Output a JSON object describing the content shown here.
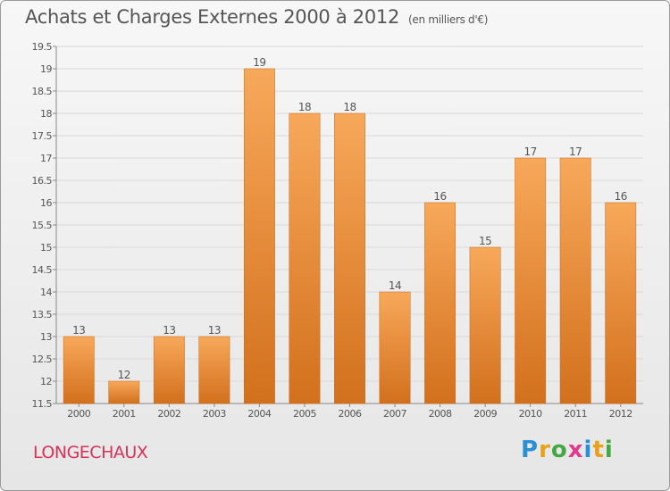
{
  "title": "Achats et Charges Externes 2000 à 2012",
  "subtitle": "(en milliers d'€)",
  "city": "LONGECHAUX",
  "logo": {
    "text": "Proxiti",
    "letters": [
      "P",
      "r",
      "o",
      "x",
      "i",
      "t",
      "i"
    ],
    "colors": [
      "#2b8fd6",
      "#e8a21a",
      "#43a843",
      "#e23a8d",
      "#2b8fd6",
      "#e8a21a",
      "#43a843"
    ]
  },
  "colors": {
    "bar_top": "#f8a85a",
    "bar_bottom": "#d2701d",
    "grid": "#d9d9d9",
    "axis": "#888888",
    "text": "#555555"
  },
  "chart_data": {
    "type": "bar",
    "title": "Achats et Charges Externes 2000 à 2012",
    "subtitle": "(en milliers d'€)",
    "categories": [
      "2000",
      "2001",
      "2002",
      "2003",
      "2004",
      "2005",
      "2006",
      "2007",
      "2008",
      "2009",
      "2010",
      "2011",
      "2012"
    ],
    "values": [
      13,
      12,
      13,
      13,
      19,
      18,
      18,
      14,
      16,
      15,
      17,
      17,
      16
    ],
    "data_labels": [
      "13",
      "12",
      "13",
      "13",
      "19",
      "18",
      "18",
      "14",
      "16",
      "15",
      "17",
      "17",
      "16"
    ],
    "ylim": [
      11.5,
      19.5
    ],
    "yticks": [
      11.5,
      12,
      12.5,
      13,
      13.5,
      14,
      14.5,
      15,
      15.5,
      16,
      16.5,
      17,
      17.5,
      18,
      18.5,
      19,
      19.5
    ],
    "ytick_labels": [
      "11.5",
      "12",
      "12.5",
      "13",
      "13.5",
      "14",
      "14.5",
      "15",
      "15.5",
      "16",
      "16.5",
      "17",
      "17.5",
      "18",
      "18.5",
      "19",
      "19.5"
    ],
    "grid": true,
    "xlabel": "",
    "ylabel": ""
  }
}
